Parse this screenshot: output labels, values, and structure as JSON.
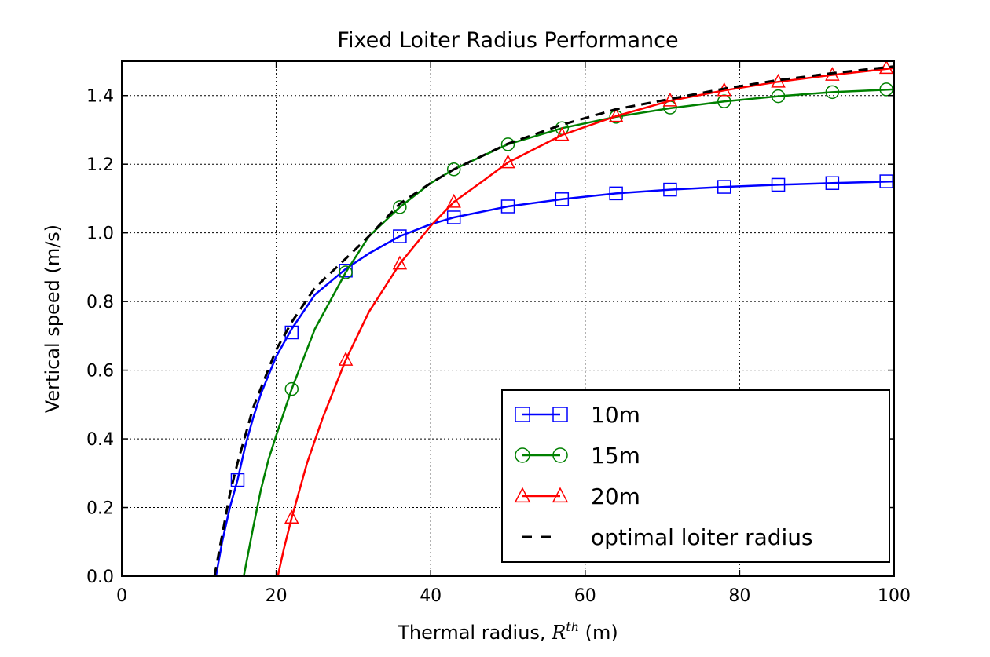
{
  "chart_data": {
    "type": "line",
    "title": "Fixed Loiter Radius Performance",
    "xlabel_prefix": "Thermal radius, ",
    "xlabel_symbol": "R",
    "xlabel_superscript": "th",
    "xlabel_suffix": " (m)",
    "ylabel": "Vertical speed (m/s)",
    "xlim": [
      0,
      100
    ],
    "ylim": [
      0,
      1.5
    ],
    "xticks": [
      "0",
      "20",
      "40",
      "60",
      "80",
      "100"
    ],
    "yticks": [
      "0.0",
      "0.2",
      "0.4",
      "0.6",
      "0.8",
      "1.0",
      "1.2",
      "1.4"
    ],
    "grid": true,
    "legend_position": "bottom-right",
    "series": [
      {
        "name": "10m",
        "color": "#0000ff",
        "marker": "square",
        "line": "solid",
        "x": [
          12.2,
          13,
          14,
          15,
          16,
          17,
          18,
          20,
          22,
          25,
          29,
          32,
          36,
          40,
          43,
          50,
          57,
          64,
          71,
          78,
          85,
          92,
          100
        ],
        "y": [
          0.0,
          0.1,
          0.2,
          0.28,
          0.38,
          0.46,
          0.53,
          0.64,
          0.72,
          0.82,
          0.895,
          0.94,
          0.99,
          1.025,
          1.045,
          1.077,
          1.098,
          1.115,
          1.126,
          1.134,
          1.14,
          1.145,
          1.15
        ],
        "marker_x": [
          15,
          22,
          29,
          36,
          43,
          50,
          57,
          64,
          71,
          78,
          85,
          92,
          99
        ],
        "marker_y": [
          0.28,
          0.71,
          0.89,
          0.99,
          1.045,
          1.077,
          1.098,
          1.115,
          1.126,
          1.134,
          1.14,
          1.145,
          1.15
        ]
      },
      {
        "name": "15m",
        "color": "#008000",
        "marker": "circle",
        "line": "solid",
        "x": [
          15.8,
          17,
          18,
          19,
          20,
          22,
          25,
          29,
          32,
          36,
          40,
          43,
          50,
          57,
          64,
          71,
          78,
          85,
          92,
          100
        ],
        "y": [
          0.0,
          0.14,
          0.25,
          0.34,
          0.41,
          0.545,
          0.72,
          0.885,
          0.99,
          1.075,
          1.145,
          1.185,
          1.258,
          1.305,
          1.338,
          1.363,
          1.383,
          1.398,
          1.41,
          1.418
        ],
        "marker_x": [
          22,
          29,
          36,
          43,
          50,
          57,
          64,
          71,
          78,
          85,
          92,
          99
        ],
        "marker_y": [
          0.545,
          0.885,
          1.075,
          1.185,
          1.258,
          1.305,
          1.338,
          1.365,
          1.383,
          1.398,
          1.41,
          1.418
        ]
      },
      {
        "name": "20m",
        "color": "#ff0000",
        "marker": "triangle",
        "line": "solid",
        "x": [
          20.2,
          21,
          22,
          24,
          26,
          29,
          32,
          36,
          40,
          43,
          47,
          50,
          57,
          64,
          71,
          78,
          85,
          92,
          100
        ],
        "y": [
          0.0,
          0.08,
          0.17,
          0.33,
          0.46,
          0.63,
          0.77,
          0.91,
          1.02,
          1.09,
          1.155,
          1.205,
          1.285,
          1.34,
          1.385,
          1.415,
          1.44,
          1.46,
          1.48
        ],
        "marker_x": [
          22,
          29,
          36,
          43,
          50,
          57,
          64,
          71,
          78,
          85,
          92,
          99
        ],
        "marker_y": [
          0.17,
          0.63,
          0.91,
          1.09,
          1.205,
          1.285,
          1.34,
          1.385,
          1.415,
          1.44,
          1.46,
          1.48
        ]
      },
      {
        "name": "optimal loiter radius",
        "color": "#000000",
        "marker": "none",
        "line": "dashed",
        "x": [
          12.0,
          13,
          14,
          15,
          17,
          20,
          22,
          25,
          29,
          32,
          36,
          40,
          43,
          50,
          57,
          64,
          71,
          78,
          85,
          92,
          100
        ],
        "y": [
          0.0,
          0.12,
          0.24,
          0.33,
          0.49,
          0.66,
          0.74,
          0.84,
          0.925,
          0.99,
          1.085,
          1.145,
          1.185,
          1.26,
          1.315,
          1.36,
          1.39,
          1.42,
          1.445,
          1.465,
          1.485
        ],
        "marker_x": [],
        "marker_y": []
      }
    ]
  }
}
